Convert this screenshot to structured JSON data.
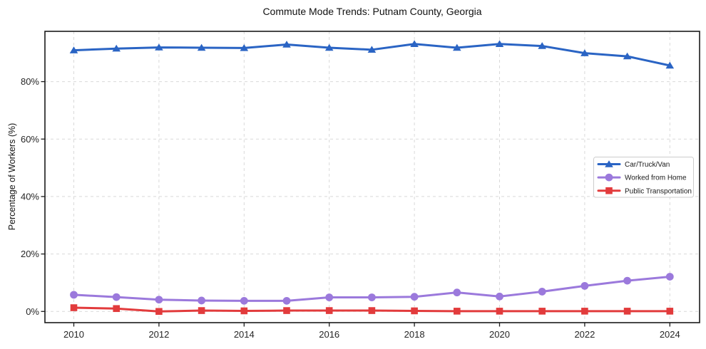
{
  "chart_data": {
    "type": "line",
    "title": "Commute Mode Trends: Putnam County, Georgia",
    "xlabel": "",
    "ylabel": "Percentage of Workers (%)",
    "x": [
      2010,
      2011,
      2012,
      2013,
      2014,
      2015,
      2016,
      2017,
      2018,
      2019,
      2020,
      2021,
      2022,
      2023,
      2024
    ],
    "x_ticks": [
      2010,
      2012,
      2014,
      2016,
      2018,
      2020,
      2022,
      2024
    ],
    "y_ticks": [
      0,
      20,
      40,
      60,
      80
    ],
    "y_tick_suffix": "%",
    "ylim": [
      -3.9,
      97.5
    ],
    "grid": true,
    "legend_position": "right-center",
    "series": [
      {
        "name": "Car/Truck/Van",
        "color": "#2a64c4",
        "marker": "triangle",
        "values": [
          90.9,
          91.5,
          91.9,
          91.8,
          91.7,
          92.9,
          91.8,
          91.1,
          93.1,
          91.8,
          93.1,
          92.4,
          89.9,
          88.8,
          85.6
        ]
      },
      {
        "name": "Worked from Home",
        "color": "#9b79dc",
        "marker": "circle",
        "values": [
          5.8,
          5.0,
          4.1,
          3.8,
          3.7,
          3.7,
          4.9,
          4.9,
          5.1,
          6.6,
          5.2,
          6.9,
          8.9,
          10.7,
          12.1
        ]
      },
      {
        "name": "Public Transportation",
        "color": "#e23b3c",
        "marker": "square",
        "values": [
          1.3,
          1.0,
          0.0,
          0.3,
          0.2,
          0.3,
          0.3,
          0.3,
          0.2,
          0.1,
          0.1,
          0.1,
          0.1,
          0.1,
          0.1
        ]
      }
    ],
    "colors": {
      "grid": "#d9d9d9",
      "spine": "#1a1a1a",
      "tick_label": "#262626",
      "legend_border": "#cccccc",
      "legend_bg": "#ffffff"
    }
  }
}
